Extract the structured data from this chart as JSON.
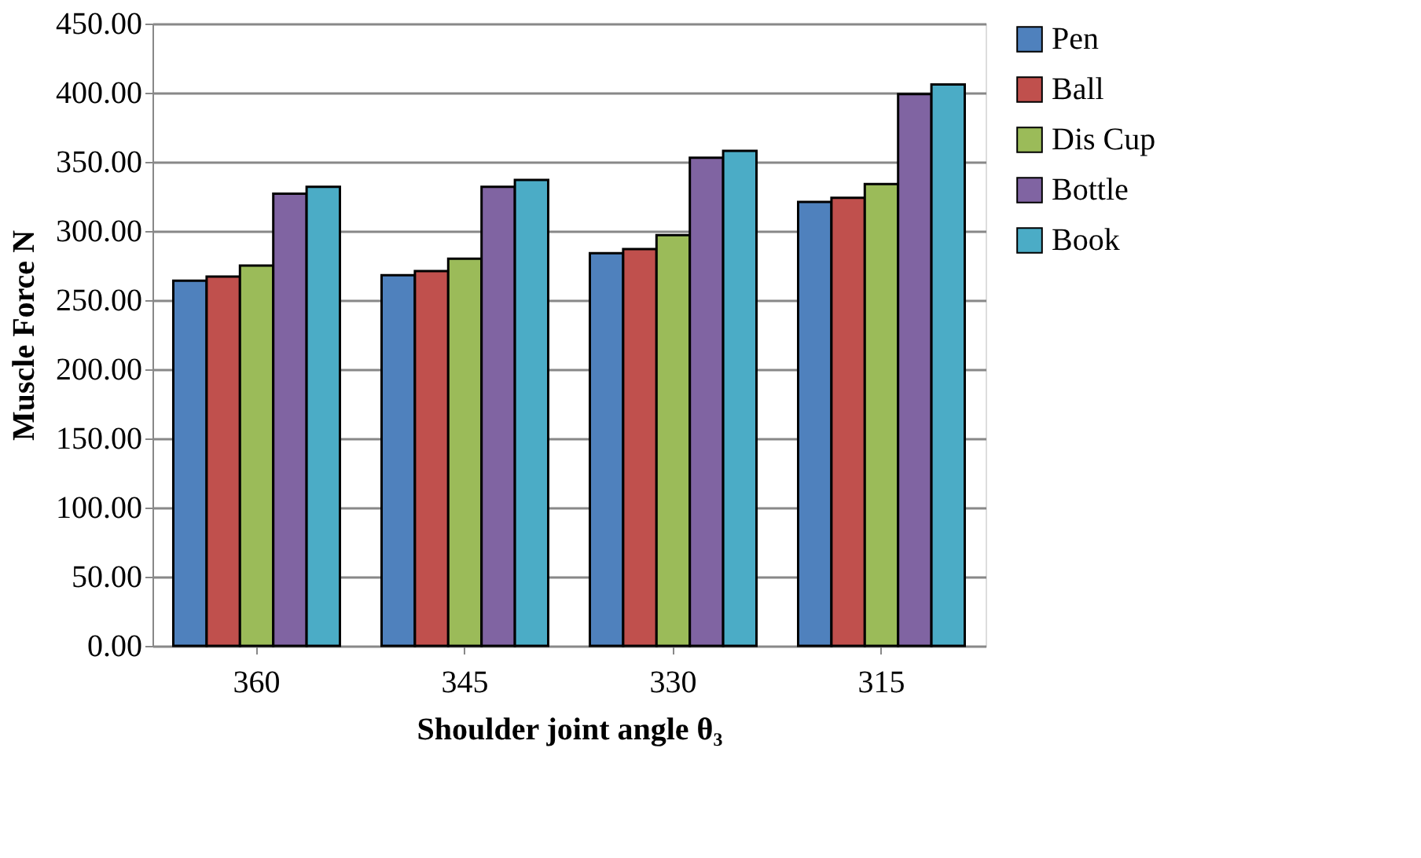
{
  "chart_data": {
    "type": "bar",
    "xlabel": "Shoulder joint angle θ₃",
    "ylabel": "Muscle Force N",
    "categories": [
      "360",
      "345",
      "330",
      "315"
    ],
    "series": [
      {
        "name": "Pen",
        "color": "#4f81bd",
        "values": [
          264,
          268,
          284,
          321
        ]
      },
      {
        "name": "Ball",
        "color": "#c0504d",
        "values": [
          267,
          271,
          287,
          324
        ]
      },
      {
        "name": "Dis Cup",
        "color": "#9bbb59",
        "values": [
          275,
          280,
          297,
          334
        ]
      },
      {
        "name": "Bottle",
        "color": "#8064a2",
        "values": [
          327,
          332,
          353,
          399
        ]
      },
      {
        "name": "Book",
        "color": "#4bacc6",
        "values": [
          332,
          337,
          358,
          406
        ]
      }
    ],
    "ylim": [
      0,
      450
    ],
    "yticks": [
      {
        "value": 0,
        "label": "0.00"
      },
      {
        "value": 50,
        "label": "50.00"
      },
      {
        "value": 100,
        "label": "100.00"
      },
      {
        "value": 150,
        "label": "150.00"
      },
      {
        "value": 200,
        "label": "200.00"
      },
      {
        "value": 250,
        "label": "250.00"
      },
      {
        "value": 300,
        "label": "300.00"
      },
      {
        "value": 350,
        "label": "350.00"
      },
      {
        "value": 400,
        "label": "400.00"
      },
      {
        "value": 450,
        "label": "450.00"
      }
    ],
    "grid": "y",
    "legend": "right"
  }
}
